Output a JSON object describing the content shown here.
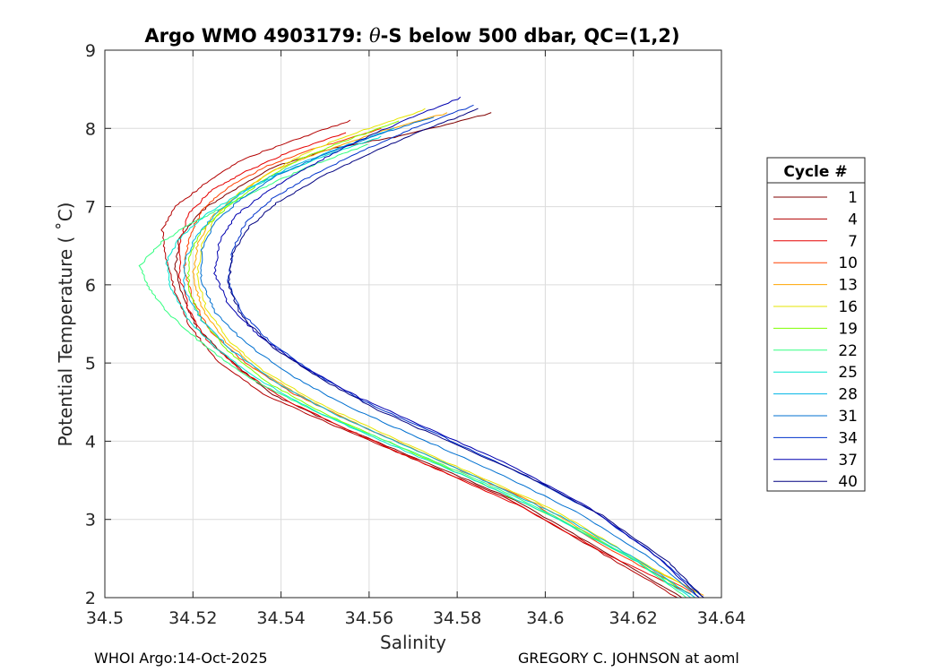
{
  "chart_data": {
    "type": "line",
    "title": "Argo WMO 4903179: θ-S below 500 dbar,  QC=(1,2)",
    "title_prefix": "Argo WMO 4903179: ",
    "title_symbol": "θ",
    "title_suffix": "-S below 500 dbar,  QC=(1,2)",
    "xlabel": "Salinity",
    "ylabel": "Potential Temperature ( ˚C)",
    "xlim": [
      34.5,
      34.64
    ],
    "ylim": [
      2,
      9
    ],
    "x_ticks": [
      34.5,
      34.52,
      34.54,
      34.56,
      34.58,
      34.6,
      34.62,
      34.64
    ],
    "x_tick_labels": [
      "34.5",
      "34.52",
      "34.54",
      "34.56",
      "34.58",
      "34.6",
      "34.62",
      "34.64"
    ],
    "y_ticks": [
      2,
      3,
      4,
      5,
      6,
      7,
      8,
      9
    ],
    "y_tick_labels": [
      "2",
      "3",
      "4",
      "5",
      "6",
      "7",
      "8",
      "9"
    ],
    "grid": true,
    "legend_title": "Cycle #",
    "legend_position": "outside-right",
    "series": [
      {
        "name": "1",
        "color": "#800000",
        "points": [
          [
            34.588,
            8.2
          ],
          [
            34.567,
            7.9
          ],
          [
            34.552,
            7.75
          ],
          [
            34.538,
            7.5
          ],
          [
            34.529,
            7.2
          ],
          [
            34.522,
            6.95
          ],
          [
            34.517,
            6.6
          ],
          [
            34.516,
            6.2
          ],
          [
            34.518,
            5.8
          ],
          [
            34.521,
            5.45
          ],
          [
            34.528,
            5.05
          ],
          [
            34.538,
            4.6
          ],
          [
            34.553,
            4.2
          ],
          [
            34.572,
            3.75
          ],
          [
            34.593,
            3.25
          ],
          [
            34.613,
            2.6
          ],
          [
            34.631,
            2.0
          ]
        ]
      },
      {
        "name": "4",
        "color": "#b30000",
        "points": [
          [
            34.556,
            8.1
          ],
          [
            34.543,
            7.85
          ],
          [
            34.531,
            7.6
          ],
          [
            34.523,
            7.3
          ],
          [
            34.516,
            7.0
          ],
          [
            34.513,
            6.7
          ],
          [
            34.514,
            6.3
          ],
          [
            34.516,
            5.9
          ],
          [
            34.519,
            5.5
          ],
          [
            34.525,
            5.05
          ],
          [
            34.536,
            4.6
          ],
          [
            34.552,
            4.2
          ],
          [
            34.571,
            3.75
          ],
          [
            34.592,
            3.25
          ],
          [
            34.612,
            2.6
          ],
          [
            34.63,
            2.0
          ]
        ]
      },
      {
        "name": "7",
        "color": "#e60000",
        "points": [
          [
            34.555,
            7.95
          ],
          [
            34.542,
            7.7
          ],
          [
            34.532,
            7.45
          ],
          [
            34.524,
            7.2
          ],
          [
            34.519,
            6.9
          ],
          [
            34.517,
            6.55
          ],
          [
            34.517,
            6.1
          ],
          [
            34.519,
            5.7
          ],
          [
            34.523,
            5.3
          ],
          [
            34.531,
            4.9
          ],
          [
            34.542,
            4.5
          ],
          [
            34.557,
            4.1
          ],
          [
            34.575,
            3.65
          ],
          [
            34.595,
            3.15
          ],
          [
            34.614,
            2.55
          ],
          [
            34.633,
            2.05
          ]
        ]
      },
      {
        "name": "10",
        "color": "#ff4000",
        "points": [
          [
            34.563,
            8.0
          ],
          [
            34.548,
            7.75
          ],
          [
            34.536,
            7.5
          ],
          [
            34.528,
            7.25
          ],
          [
            34.522,
            6.95
          ],
          [
            34.519,
            6.6
          ],
          [
            34.518,
            6.2
          ],
          [
            34.52,
            5.8
          ],
          [
            34.524,
            5.4
          ],
          [
            34.532,
            5.0
          ],
          [
            34.543,
            4.6
          ],
          [
            34.558,
            4.2
          ],
          [
            34.576,
            3.75
          ],
          [
            34.596,
            3.25
          ],
          [
            34.615,
            2.6
          ],
          [
            34.634,
            2.05
          ]
        ]
      },
      {
        "name": "13",
        "color": "#ffa500",
        "points": [
          [
            34.578,
            8.2
          ],
          [
            34.562,
            7.95
          ],
          [
            34.549,
            7.7
          ],
          [
            34.538,
            7.45
          ],
          [
            34.53,
            7.15
          ],
          [
            34.524,
            6.85
          ],
          [
            34.521,
            6.5
          ],
          [
            34.52,
            6.1
          ],
          [
            34.522,
            5.7
          ],
          [
            34.527,
            5.3
          ],
          [
            34.535,
            4.9
          ],
          [
            34.547,
            4.5
          ],
          [
            34.562,
            4.1
          ],
          [
            34.58,
            3.65
          ],
          [
            34.6,
            3.15
          ],
          [
            34.618,
            2.55
          ],
          [
            34.636,
            2.03
          ]
        ]
      },
      {
        "name": "16",
        "color": "#e6e600",
        "points": [
          [
            34.573,
            8.25
          ],
          [
            34.56,
            8.0
          ],
          [
            34.548,
            7.75
          ],
          [
            34.538,
            7.45
          ],
          [
            34.53,
            7.15
          ],
          [
            34.525,
            6.85
          ],
          [
            34.522,
            6.5
          ],
          [
            34.521,
            6.1
          ],
          [
            34.523,
            5.7
          ],
          [
            34.528,
            5.3
          ],
          [
            34.536,
            4.9
          ],
          [
            34.548,
            4.5
          ],
          [
            34.563,
            4.1
          ],
          [
            34.581,
            3.65
          ],
          [
            34.601,
            3.15
          ],
          [
            34.619,
            2.55
          ],
          [
            34.635,
            2.05
          ]
        ]
      },
      {
        "name": "19",
        "color": "#7fff00",
        "points": [
          [
            34.567,
            8.1
          ],
          [
            34.555,
            7.85
          ],
          [
            34.544,
            7.6
          ],
          [
            34.535,
            7.3
          ],
          [
            34.528,
            7.0
          ],
          [
            34.522,
            6.7
          ],
          [
            34.519,
            6.35
          ],
          [
            34.519,
            5.95
          ],
          [
            34.522,
            5.55
          ],
          [
            34.528,
            5.15
          ],
          [
            34.537,
            4.75
          ],
          [
            34.55,
            4.35
          ],
          [
            34.566,
            3.95
          ],
          [
            34.584,
            3.5
          ],
          [
            34.603,
            3.0
          ],
          [
            34.621,
            2.45
          ],
          [
            34.634,
            2.0
          ]
        ]
      },
      {
        "name": "22",
        "color": "#33ff80",
        "points": [
          [
            34.56,
            7.8
          ],
          [
            34.548,
            7.55
          ],
          [
            34.538,
            7.3
          ],
          [
            34.529,
            7.05
          ],
          [
            34.52,
            6.8
          ],
          [
            34.513,
            6.55
          ],
          [
            34.508,
            6.25
          ],
          [
            34.51,
            5.95
          ],
          [
            34.515,
            5.6
          ],
          [
            34.523,
            5.2
          ],
          [
            34.533,
            4.8
          ],
          [
            34.547,
            4.4
          ],
          [
            34.564,
            4.0
          ],
          [
            34.583,
            3.55
          ],
          [
            34.602,
            3.05
          ],
          [
            34.62,
            2.5
          ],
          [
            34.632,
            2.0
          ]
        ]
      },
      {
        "name": "25",
        "color": "#00e6d0",
        "points": [
          [
            34.563,
            7.9
          ],
          [
            34.55,
            7.65
          ],
          [
            34.539,
            7.4
          ],
          [
            34.53,
            7.15
          ],
          [
            34.523,
            6.9
          ],
          [
            34.517,
            6.6
          ],
          [
            34.514,
            6.3
          ],
          [
            34.515,
            5.95
          ],
          [
            34.519,
            5.55
          ],
          [
            34.526,
            5.15
          ],
          [
            34.536,
            4.75
          ],
          [
            34.549,
            4.35
          ],
          [
            34.565,
            3.95
          ],
          [
            34.584,
            3.5
          ],
          [
            34.603,
            3.0
          ],
          [
            34.621,
            2.45
          ],
          [
            34.633,
            2.0
          ]
        ]
      },
      {
        "name": "28",
        "color": "#00b4e6",
        "points": [
          [
            34.566,
            8.0
          ],
          [
            34.553,
            7.75
          ],
          [
            34.542,
            7.5
          ],
          [
            34.533,
            7.25
          ],
          [
            34.526,
            6.95
          ],
          [
            34.521,
            6.65
          ],
          [
            34.518,
            6.3
          ],
          [
            34.518,
            5.95
          ],
          [
            34.522,
            5.55
          ],
          [
            34.529,
            5.15
          ],
          [
            34.539,
            4.75
          ],
          [
            34.552,
            4.35
          ],
          [
            34.568,
            3.95
          ],
          [
            34.586,
            3.5
          ],
          [
            34.605,
            3.0
          ],
          [
            34.622,
            2.45
          ],
          [
            34.634,
            2.0
          ]
        ]
      },
      {
        "name": "31",
        "color": "#0070d0",
        "points": [
          [
            34.575,
            8.15
          ],
          [
            34.561,
            7.9
          ],
          [
            34.549,
            7.65
          ],
          [
            34.539,
            7.4
          ],
          [
            34.531,
            7.1
          ],
          [
            34.525,
            6.8
          ],
          [
            34.522,
            6.45
          ],
          [
            34.522,
            6.05
          ],
          [
            34.525,
            5.65
          ],
          [
            34.532,
            5.25
          ],
          [
            34.542,
            4.85
          ],
          [
            34.555,
            4.45
          ],
          [
            34.571,
            4.05
          ],
          [
            34.589,
            3.6
          ],
          [
            34.607,
            3.1
          ],
          [
            34.624,
            2.5
          ],
          [
            34.635,
            2.0
          ]
        ]
      },
      {
        "name": "34",
        "color": "#0033cc",
        "points": [
          [
            34.584,
            8.3
          ],
          [
            34.57,
            8.0
          ],
          [
            34.558,
            7.7
          ],
          [
            34.547,
            7.4
          ],
          [
            34.538,
            7.1
          ],
          [
            34.532,
            6.8
          ],
          [
            34.529,
            6.45
          ],
          [
            34.528,
            6.05
          ],
          [
            34.531,
            5.65
          ],
          [
            34.538,
            5.25
          ],
          [
            34.548,
            4.85
          ],
          [
            34.561,
            4.45
          ],
          [
            34.577,
            4.05
          ],
          [
            34.594,
            3.6
          ],
          [
            34.611,
            3.1
          ],
          [
            34.626,
            2.5
          ],
          [
            34.636,
            2.0
          ]
        ]
      },
      {
        "name": "37",
        "color": "#0000b0",
        "points": [
          [
            34.581,
            8.4
          ],
          [
            34.568,
            8.1
          ],
          [
            34.556,
            7.8
          ],
          [
            34.546,
            7.5
          ],
          [
            34.537,
            7.2
          ],
          [
            34.53,
            6.9
          ],
          [
            34.526,
            6.55
          ],
          [
            34.525,
            6.15
          ],
          [
            34.528,
            5.75
          ],
          [
            34.535,
            5.35
          ],
          [
            34.545,
            4.95
          ],
          [
            34.558,
            4.55
          ],
          [
            34.574,
            4.15
          ],
          [
            34.592,
            3.7
          ],
          [
            34.61,
            3.15
          ],
          [
            34.626,
            2.5
          ],
          [
            34.635,
            2.0
          ]
        ]
      },
      {
        "name": "40",
        "color": "#000080",
        "points": [
          [
            34.585,
            8.25
          ],
          [
            34.571,
            7.95
          ],
          [
            34.559,
            7.65
          ],
          [
            34.548,
            7.35
          ],
          [
            34.539,
            7.05
          ],
          [
            34.533,
            6.75
          ],
          [
            34.529,
            6.4
          ],
          [
            34.528,
            6.0
          ],
          [
            34.531,
            5.6
          ],
          [
            34.538,
            5.2
          ],
          [
            34.549,
            4.8
          ],
          [
            34.562,
            4.4
          ],
          [
            34.578,
            4.0
          ],
          [
            34.596,
            3.55
          ],
          [
            34.613,
            3.05
          ],
          [
            34.628,
            2.45
          ],
          [
            34.636,
            2.0
          ]
        ]
      }
    ]
  },
  "footer": {
    "left": "WHOI Argo:14-Oct-2025",
    "right": "GREGORY C. JOHNSON at aoml"
  }
}
